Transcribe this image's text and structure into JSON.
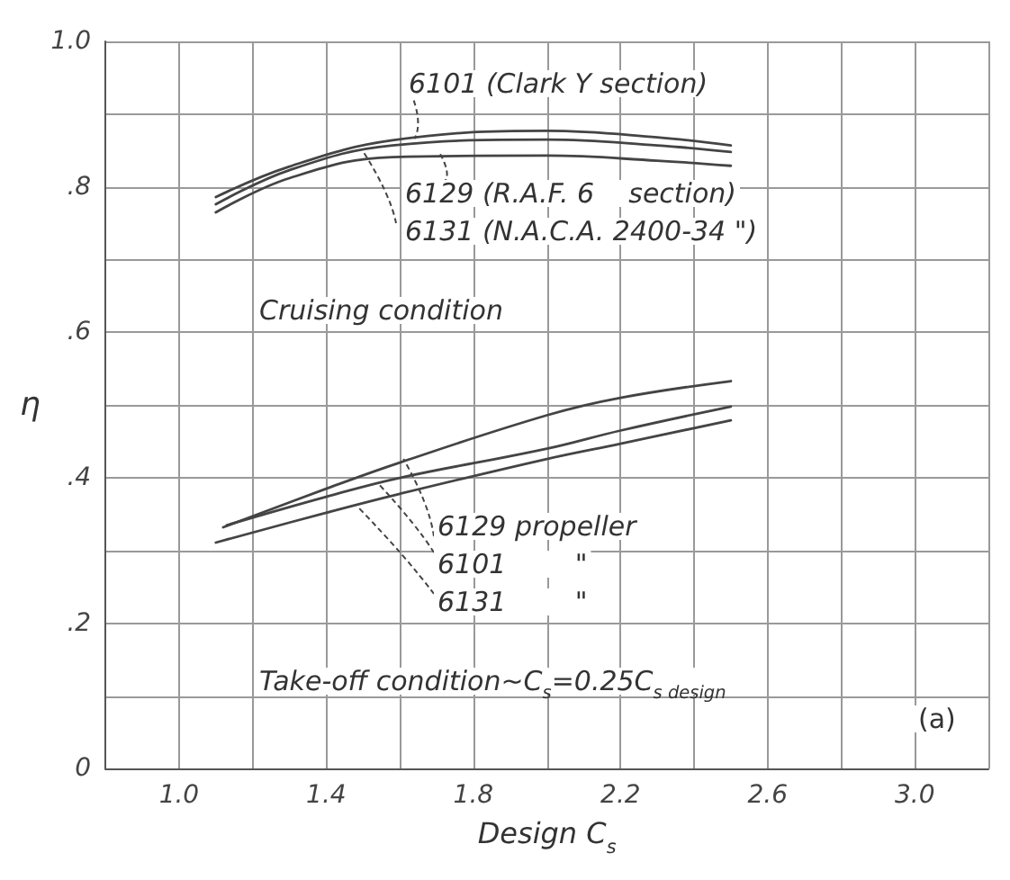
{
  "chart_data": {
    "type": "line",
    "xlabel": "Design C$_{s}$",
    "ylabel": "η",
    "xlim": [
      0.8,
      3.2
    ],
    "xticks": [
      {
        "value": 0.8,
        "label": null
      },
      {
        "value": 1.0,
        "label": "1.0"
      },
      {
        "value": 1.2,
        "label": null
      },
      {
        "value": 1.4,
        "label": "1.4"
      },
      {
        "value": 1.6,
        "label": null
      },
      {
        "value": 1.8,
        "label": "1.8"
      },
      {
        "value": 2.0,
        "label": null
      },
      {
        "value": 2.2,
        "label": "2.2"
      },
      {
        "value": 2.4,
        "label": null
      },
      {
        "value": 2.6,
        "label": "2.6"
      },
      {
        "value": 2.8,
        "label": null
      },
      {
        "value": 3.0,
        "label": "3.0"
      },
      {
        "value": 3.2,
        "label": null
      }
    ],
    "ylim": [
      0,
      1
    ],
    "yticks": [
      {
        "value": 0,
        "label": "0"
      },
      {
        "value": 0.1,
        "label": null
      },
      {
        "value": 0.2,
        "label": ".2"
      },
      {
        "value": 0.3,
        "label": null
      },
      {
        "value": 0.4,
        "label": ".4"
      },
      {
        "value": 0.5,
        "label": null
      },
      {
        "value": 0.6,
        "label": ".6"
      },
      {
        "value": 0.7,
        "label": null
      },
      {
        "value": 0.8,
        "label": ".8"
      },
      {
        "value": 0.9,
        "label": null
      },
      {
        "value": 1.0,
        "label": "1.0"
      }
    ],
    "grid": true,
    "marker": "none",
    "line_style": "solid",
    "series": [
      {
        "color": "#444444",
        "x": [
          1.1,
          1.3,
          1.58,
          2.0,
          2.3,
          2.5
        ],
        "values": [
          0.786,
          0.828,
          0.864,
          0.877,
          0.868,
          0.857
        ]
      },
      {
        "color": "#444444",
        "x": [
          1.1,
          1.3,
          1.58,
          2.0,
          2.3,
          2.5
        ],
        "values": [
          0.776,
          0.823,
          0.857,
          0.865,
          0.857,
          0.848
        ]
      },
      {
        "color": "#444444",
        "x": [
          1.1,
          1.3,
          1.58,
          2.0,
          2.3,
          2.5
        ],
        "values": [
          0.765,
          0.812,
          0.841,
          0.843,
          0.836,
          0.829
        ]
      },
      {
        "color": "#444444",
        "x": [
          1.12,
          1.4,
          1.6,
          2.0,
          2.2,
          2.5
        ],
        "values": [
          0.332,
          0.385,
          0.421,
          0.486,
          0.51,
          0.533
        ]
      },
      {
        "color": "#444444",
        "x": [
          1.13,
          1.4,
          1.6,
          2.0,
          2.2,
          2.5
        ],
        "values": [
          0.335,
          0.374,
          0.4,
          0.44,
          0.465,
          0.498
        ]
      },
      {
        "color": "#444444",
        "x": [
          1.1,
          1.4,
          1.6,
          2.0,
          2.2,
          2.5
        ],
        "values": [
          0.311,
          0.352,
          0.378,
          0.426,
          0.447,
          0.479
        ]
      }
    ],
    "annotations": [
      {
        "text": "6101 (Clark Y section)",
        "x": 1.64,
        "y": 0.866
      },
      {
        "text": "6129 (R.A.F. 6    section)",
        "x": 1.71,
        "y": 0.845
      },
      {
        "text": "6131 (N.A.C.A. 2400-34 \")",
        "x": 1.5,
        "y": 0.849
      },
      "Cruising condition",
      {
        "text": "6129 propeller",
        "x": 1.61,
        "y": 0.426
      },
      {
        "text": "6101        \"",
        "x": 1.54,
        "y": 0.393
      },
      {
        "text": "6131        \"",
        "x": 1.49,
        "y": 0.358
      },
      "Take-off condition~C$_{s}$=0.25C$_{s design}$",
      "(a)"
    ]
  }
}
